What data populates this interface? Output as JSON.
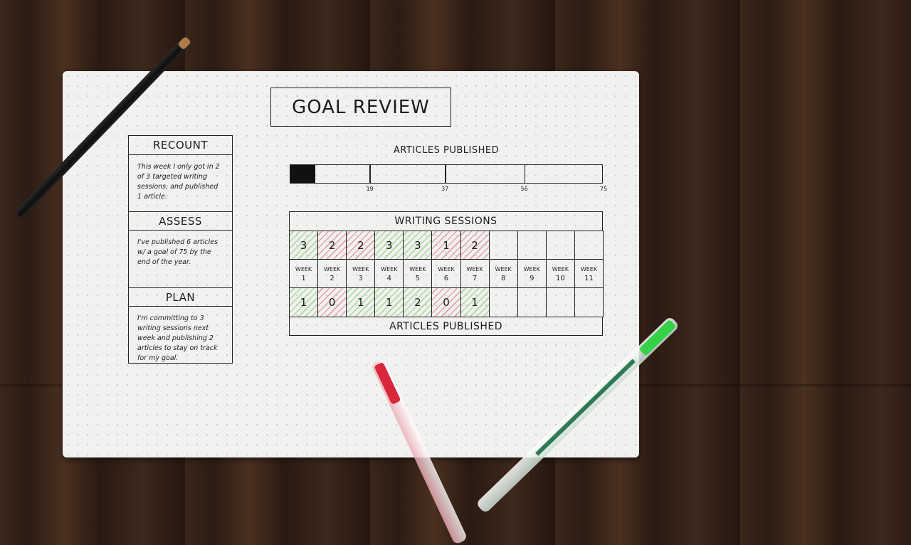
{
  "journal": {
    "title": "GOAL REVIEW",
    "recount": {
      "heading": "RECOUNT",
      "text": "This week I only got in 2 of 3 targeted writing sessions, and published 1 article."
    },
    "assess": {
      "heading": "ASSESS",
      "text": "I've published 6 articles w/ a goal of 75 by the end of the year."
    },
    "plan": {
      "heading": "PLAN",
      "text": "I'm committing to 3 writing sessions next week and publishing 2 articles to stay on track for my goal."
    },
    "progress": {
      "label": "ARTICLES PUBLISHED",
      "value": 6,
      "max": 75,
      "ticks": [
        "19",
        "37",
        "56",
        "75"
      ]
    },
    "table": {
      "top_label": "WRITING SESSIONS",
      "bottom_label": "ARTICLES PUBLISHED",
      "week_word": "WEEK",
      "weeks": [
        "1",
        "2",
        "3",
        "4",
        "5",
        "6",
        "7",
        "8",
        "9",
        "10",
        "11"
      ],
      "sessions": [
        "3",
        "2",
        "2",
        "3",
        "3",
        "1",
        "2",
        "",
        "",
        "",
        ""
      ],
      "articles": [
        "1",
        "0",
        "1",
        "1",
        "2",
        "0",
        "1",
        "",
        "",
        "",
        ""
      ]
    }
  },
  "colors": {
    "good": "#78c864",
    "bad": "#dc6e78",
    "ink": "#1d1d1d"
  }
}
